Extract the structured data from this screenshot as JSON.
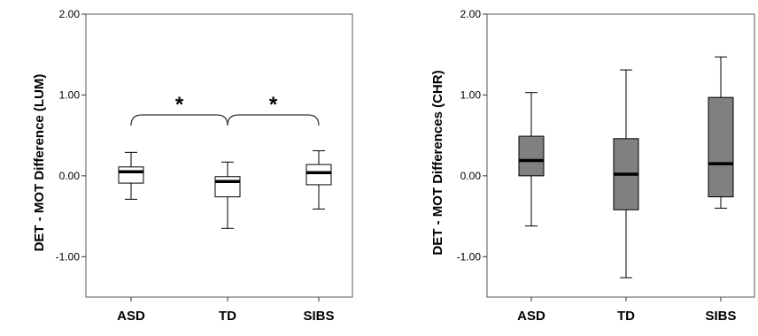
{
  "chart_data": [
    {
      "type": "box",
      "ylabel": "DET - MOT Difference (LUM)",
      "ylim": [
        -1.5,
        2.0
      ],
      "yticks": [
        {
          "value": 2.0,
          "label": "2.00"
        },
        {
          "value": 1.0,
          "label": "1.00"
        },
        {
          "value": 0.0,
          "label": "0.00"
        },
        {
          "value": -1.0,
          "label": "-1.00"
        }
      ],
      "categories": [
        "ASD",
        "TD",
        "SIBS"
      ],
      "box_fill": "#ffffff",
      "boxes": [
        {
          "whisker_low": -0.29,
          "q1": -0.09,
          "median": 0.05,
          "q3": 0.11,
          "whisker_high": 0.29
        },
        {
          "whisker_low": -0.65,
          "q1": -0.26,
          "median": -0.07,
          "q3": -0.01,
          "whisker_high": 0.17
        },
        {
          "whisker_low": -0.41,
          "q1": -0.11,
          "median": 0.04,
          "q3": 0.14,
          "whisker_high": 0.31
        }
      ],
      "annotations": [
        {
          "between": [
            "ASD",
            "TD"
          ],
          "label": "*"
        },
        {
          "between": [
            "TD",
            "SIBS"
          ],
          "label": "*"
        }
      ]
    },
    {
      "type": "box",
      "ylabel": "DET - MOT Differences (CHR)",
      "ylim": [
        -1.5,
        2.0
      ],
      "yticks": [
        {
          "value": 2.0,
          "label": "2.00"
        },
        {
          "value": 1.0,
          "label": "1.00"
        },
        {
          "value": 0.0,
          "label": "0.00"
        },
        {
          "value": -1.0,
          "label": "-1.00"
        }
      ],
      "categories": [
        "ASD",
        "TD",
        "SIBS"
      ],
      "box_fill": "#808080",
      "boxes": [
        {
          "whisker_low": -0.62,
          "q1": 0.0,
          "median": 0.19,
          "q3": 0.49,
          "whisker_high": 1.03
        },
        {
          "whisker_low": -1.26,
          "q1": -0.42,
          "median": 0.02,
          "q3": 0.46,
          "whisker_high": 1.31
        },
        {
          "whisker_low": -0.4,
          "q1": -0.26,
          "median": 0.15,
          "q3": 0.97,
          "whisker_high": 1.47
        }
      ],
      "annotations": []
    }
  ]
}
